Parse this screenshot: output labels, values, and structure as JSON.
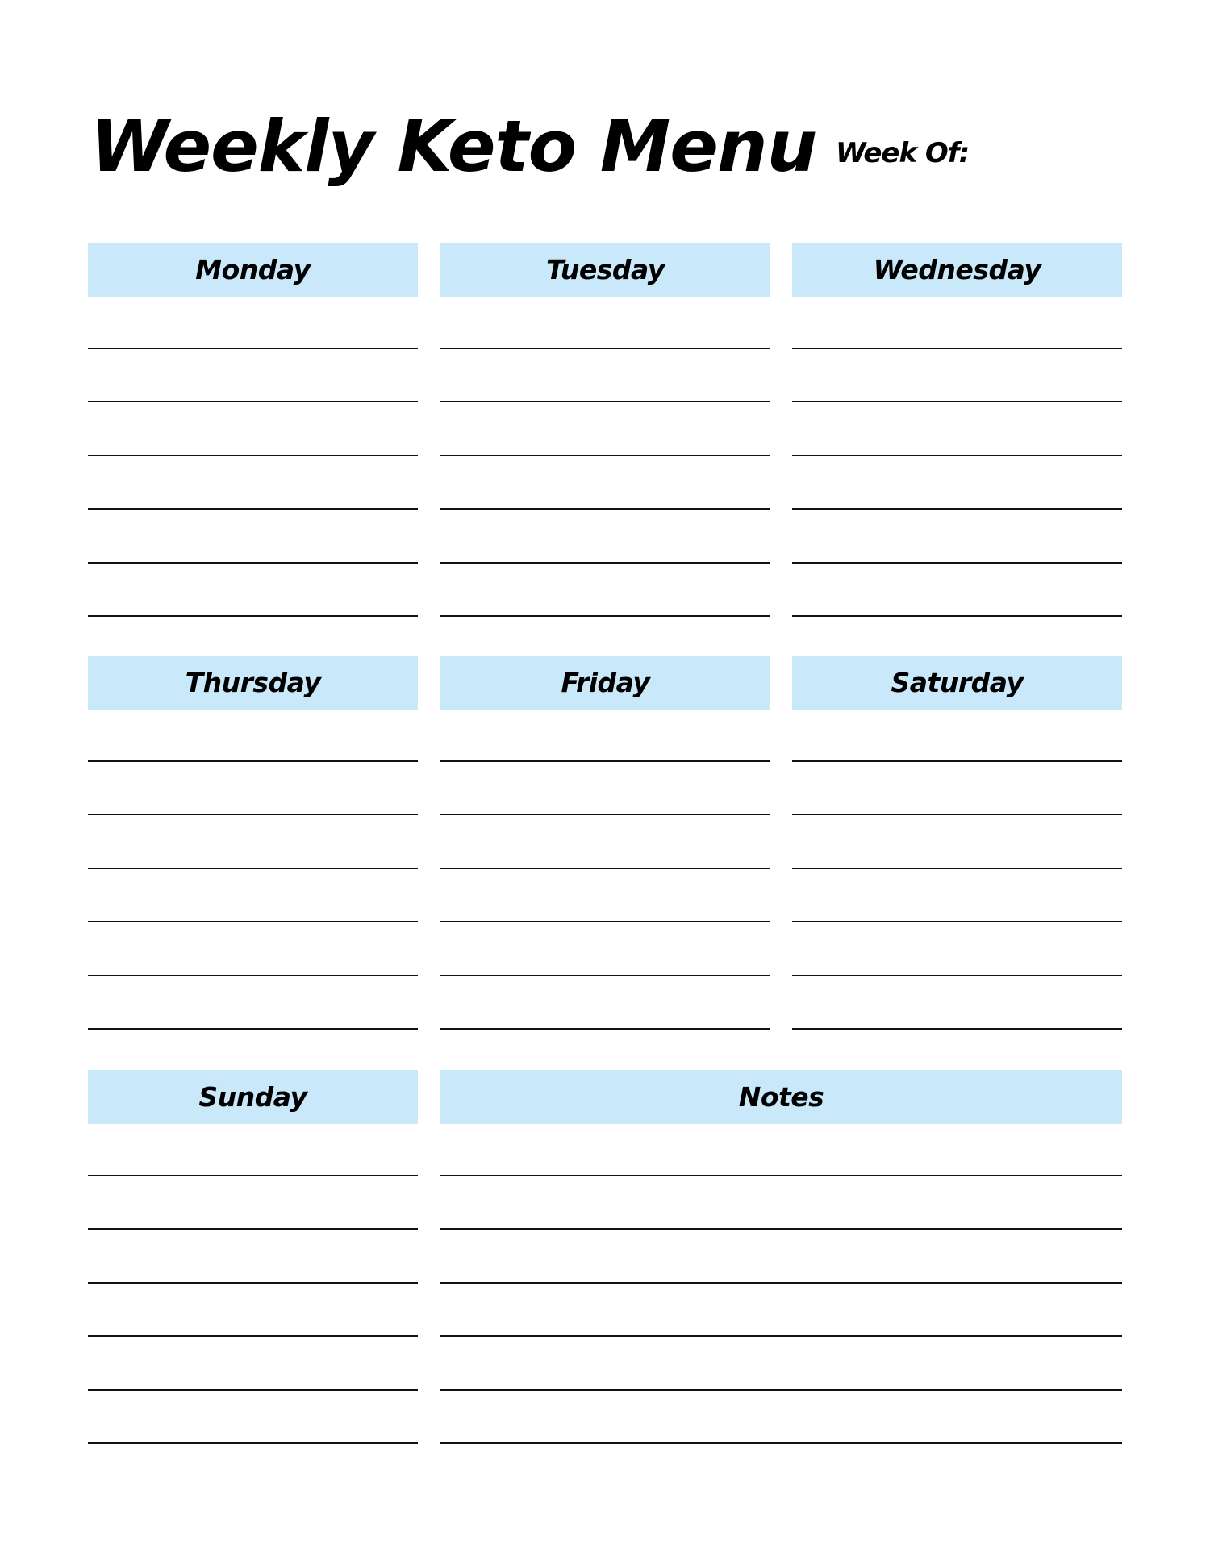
{
  "title": "Weekly Keto Menu",
  "week_of_label": "Week Of:",
  "header_color": "#c9e8f9",
  "sections": [
    {
      "label": "Monday"
    },
    {
      "label": "Tuesday"
    },
    {
      "label": "Wednesday"
    },
    {
      "label": "Thursday"
    },
    {
      "label": "Friday"
    },
    {
      "label": "Saturday"
    },
    {
      "label": "Sunday"
    },
    {
      "label": "Notes"
    }
  ]
}
